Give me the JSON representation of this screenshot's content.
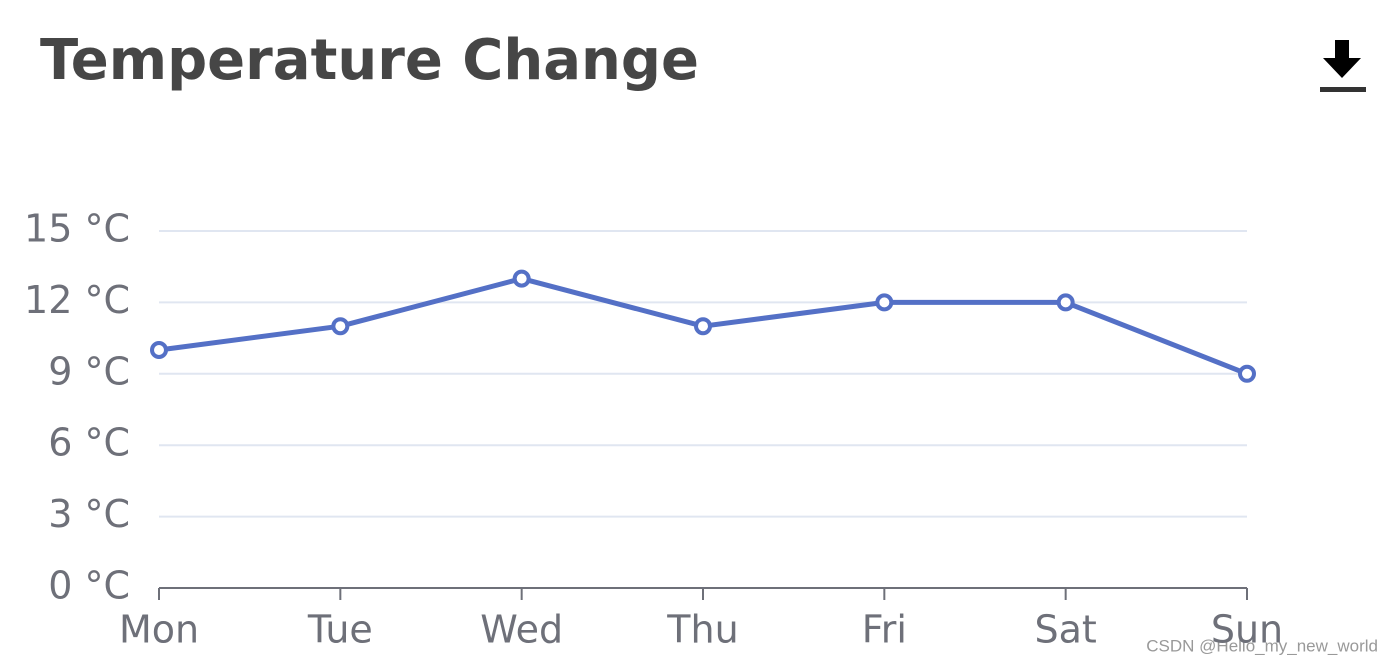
{
  "chart_data": {
    "type": "line",
    "title": "Temperature Change",
    "categories": [
      "Mon",
      "Tue",
      "Wed",
      "Thu",
      "Fri",
      "Sat",
      "Sun"
    ],
    "series": [
      {
        "color": "#5470c6",
        "values": [
          10,
          11,
          13,
          11,
          12,
          12,
          9
        ]
      }
    ],
    "ylim": [
      0,
      15
    ],
    "yticks": [
      {
        "value": 0,
        "label": "0 °C"
      },
      {
        "value": 3,
        "label": "3 °C"
      },
      {
        "value": 6,
        "label": "6 °C"
      },
      {
        "value": 9,
        "label": "9 °C"
      },
      {
        "value": 12,
        "label": "12 °C"
      },
      {
        "value": 15,
        "label": "15 °C"
      }
    ],
    "grid": true
  },
  "watermark": "CSDN @Hello_my_new_world"
}
